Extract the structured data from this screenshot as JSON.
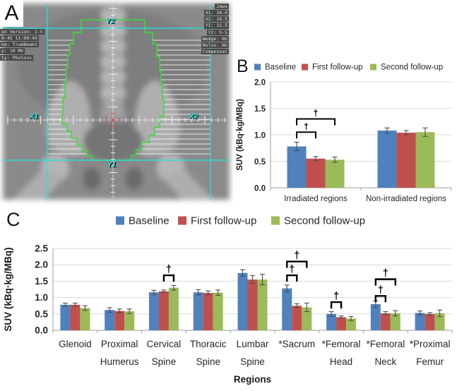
{
  "panel_a": {
    "label": "A",
    "machine_info_lines": [
      "on Version: 2-5",
      "0-45 11:00:49",
      "ne: TrueBeam1",
      "y: 10 MV",
      "ty: Photons"
    ],
    "jaw_info_lines": [
      "Jaws",
      "X1: 10.0",
      "X2: 10.5",
      "Y1: 15.5",
      "Y2: 5-5",
      "Wedge: No",
      "Bolus: No",
      "Compensat"
    ],
    "axis_labels": {
      "top": "Y2",
      "left": "X1",
      "right": "X2",
      "bottom": "Y1"
    }
  },
  "panel_b": {
    "label": "B"
  },
  "panel_c": {
    "label": "C"
  },
  "colors": {
    "baseline": "#4F81BD",
    "first_followup": "#C0504D",
    "second_followup": "#9BBB59",
    "gridline": "#D9D9D9",
    "axis": "#9E9E9E",
    "error_bar": "#4D4D4D",
    "bracket": "#000000",
    "field_overlay_cyan": "#19E8E8",
    "contour_green": "#3ADB3A"
  },
  "chart_data": [
    {
      "panel": "B",
      "type": "bar",
      "title": "",
      "ylabel": "SUV (kBq·kg/MBq)",
      "xlabel": "",
      "ylim": [
        0,
        2.0
      ],
      "yticks": [
        0,
        0.5,
        1.0,
        1.5,
        2.0
      ],
      "grid": true,
      "legend_position": "top",
      "categories": [
        [
          "Irradiated regions"
        ],
        [
          "Non-irradiated regions"
        ]
      ],
      "series": [
        {
          "name": "Baseline",
          "color": "#4F81BD",
          "values": [
            0.78,
            1.08
          ],
          "errors": [
            0.08,
            0.05
          ]
        },
        {
          "name": "First follow-up",
          "color": "#C0504D",
          "values": [
            0.55,
            1.04
          ],
          "errors": [
            0.04,
            0.04
          ]
        },
        {
          "name": "Second follow-up",
          "color": "#9BBB59",
          "values": [
            0.53,
            1.05
          ],
          "errors": [
            0.05,
            0.08
          ]
        }
      ],
      "significance": [
        {
          "category": 0,
          "from": 0,
          "to": 1,
          "y": 1.05,
          "symbol": "†"
        },
        {
          "category": 0,
          "from": 0,
          "to": 2,
          "y": 1.3,
          "symbol": "†"
        }
      ]
    },
    {
      "panel": "C",
      "type": "bar",
      "title": "",
      "ylabel": "SUV (kBq·kg/MBq)",
      "xlabel": "Regions",
      "ylim": [
        0,
        2.5
      ],
      "yticks": [
        0,
        0.5,
        1.0,
        1.5,
        2.0,
        2.5
      ],
      "grid": true,
      "legend_position": "top",
      "categories": [
        [
          "Glenoid"
        ],
        [
          "Proximal",
          "Humerus"
        ],
        [
          "Cervical",
          "Spine"
        ],
        [
          "Thoracic",
          "Spine"
        ],
        [
          "Lumbar",
          "Spine"
        ],
        [
          "*Sacrum"
        ],
        [
          "*Femoral",
          "Head"
        ],
        [
          "*Femoral",
          "Neck"
        ],
        [
          "*Proximal",
          "Femur"
        ]
      ],
      "series": [
        {
          "name": "Baseline",
          "color": "#4F81BD",
          "values": [
            0.78,
            0.62,
            1.16,
            1.16,
            1.75,
            1.28,
            0.5,
            0.8,
            0.53
          ],
          "errors": [
            0.05,
            0.07,
            0.06,
            0.08,
            0.1,
            0.1,
            0.07,
            0.1,
            0.06
          ]
        },
        {
          "name": "First follow-up",
          "color": "#C0504D",
          "values": [
            0.78,
            0.59,
            1.19,
            1.14,
            1.55,
            0.75,
            0.4,
            0.52,
            0.5
          ],
          "errors": [
            0.05,
            0.06,
            0.04,
            0.06,
            0.12,
            0.06,
            0.04,
            0.05,
            0.04
          ]
        },
        {
          "name": "Second follow-up",
          "color": "#9BBB59",
          "values": [
            0.68,
            0.58,
            1.3,
            1.15,
            1.55,
            0.7,
            0.36,
            0.52,
            0.52
          ],
          "errors": [
            0.07,
            0.07,
            0.07,
            0.08,
            0.16,
            0.13,
            0.06,
            0.08,
            0.1
          ]
        }
      ],
      "significance": [
        {
          "category": 2,
          "from": 1,
          "to": 2,
          "y": 1.68,
          "symbol": "†"
        },
        {
          "category": 5,
          "from": 0,
          "to": 1,
          "y": 1.68,
          "symbol": "†"
        },
        {
          "category": 5,
          "from": 0,
          "to": 2,
          "y": 2.1,
          "symbol": "†"
        },
        {
          "category": 6,
          "from": 0,
          "to": 1,
          "y": 0.86,
          "symbol": "†"
        },
        {
          "category": 7,
          "from": 0,
          "to": 1,
          "y": 1.05,
          "symbol": "†"
        },
        {
          "category": 7,
          "from": 0,
          "to": 2,
          "y": 1.56,
          "symbol": "†"
        }
      ]
    }
  ]
}
